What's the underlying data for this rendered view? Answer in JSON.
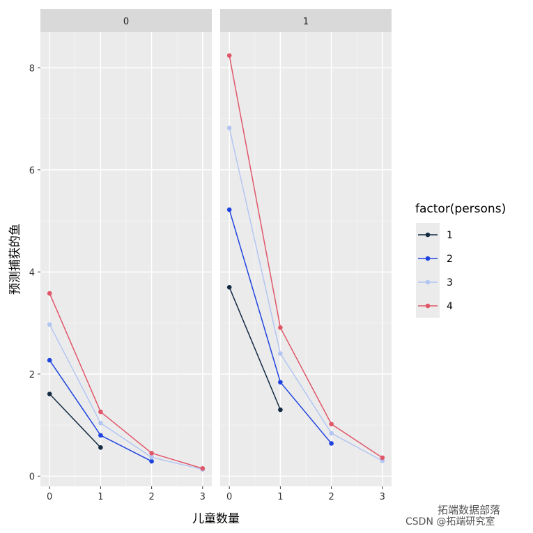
{
  "chart_data": {
    "type": "line",
    "facets": [
      "0",
      "1"
    ],
    "xlabel": "儿童数量",
    "ylabel": "预测捕获的鱼",
    "x_ticks": [
      "0",
      "1",
      "2",
      "3"
    ],
    "y_ticks": [
      "0",
      "2",
      "4",
      "6",
      "8"
    ],
    "xlim": [
      -0.18,
      3.18
    ],
    "ylim": [
      -0.2,
      8.7
    ],
    "grid": true,
    "legend": {
      "title": "factor(persons)",
      "position": "right"
    },
    "series": [
      {
        "name": "1",
        "color": "#132b43",
        "facets": {
          "0": [
            [
              0,
              1.61
            ],
            [
              1,
              0.56
            ]
          ],
          "1": [
            [
              0,
              3.7
            ],
            [
              1,
              1.3
            ]
          ]
        }
      },
      {
        "name": "2",
        "color": "#1f43e0",
        "facets": {
          "0": [
            [
              0,
              2.27
            ],
            [
              1,
              0.8
            ],
            [
              2,
              0.29
            ]
          ],
          "1": [
            [
              0,
              5.22
            ],
            [
              1,
              1.84
            ],
            [
              2,
              0.64
            ]
          ]
        }
      },
      {
        "name": "3",
        "color": "#b3c6f2",
        "facets": {
          "0": [
            [
              0,
              2.97
            ],
            [
              1,
              1.04
            ],
            [
              2,
              0.37
            ],
            [
              3,
              0.13
            ]
          ],
          "1": [
            [
              0,
              6.82
            ],
            [
              1,
              2.4
            ],
            [
              2,
              0.84
            ],
            [
              3,
              0.3
            ]
          ]
        }
      },
      {
        "name": "4",
        "color": "#e0576a",
        "facets": {
          "0": [
            [
              0,
              3.58
            ],
            [
              1,
              1.26
            ],
            [
              2,
              0.45
            ],
            [
              3,
              0.15
            ]
          ],
          "1": [
            [
              0,
              8.24
            ],
            [
              1,
              2.91
            ],
            [
              2,
              1.02
            ],
            [
              3,
              0.36
            ]
          ]
        }
      }
    ]
  },
  "watermark": {
    "line1": "拓端数据部落",
    "line2": "CSDN @拓端研究室"
  }
}
